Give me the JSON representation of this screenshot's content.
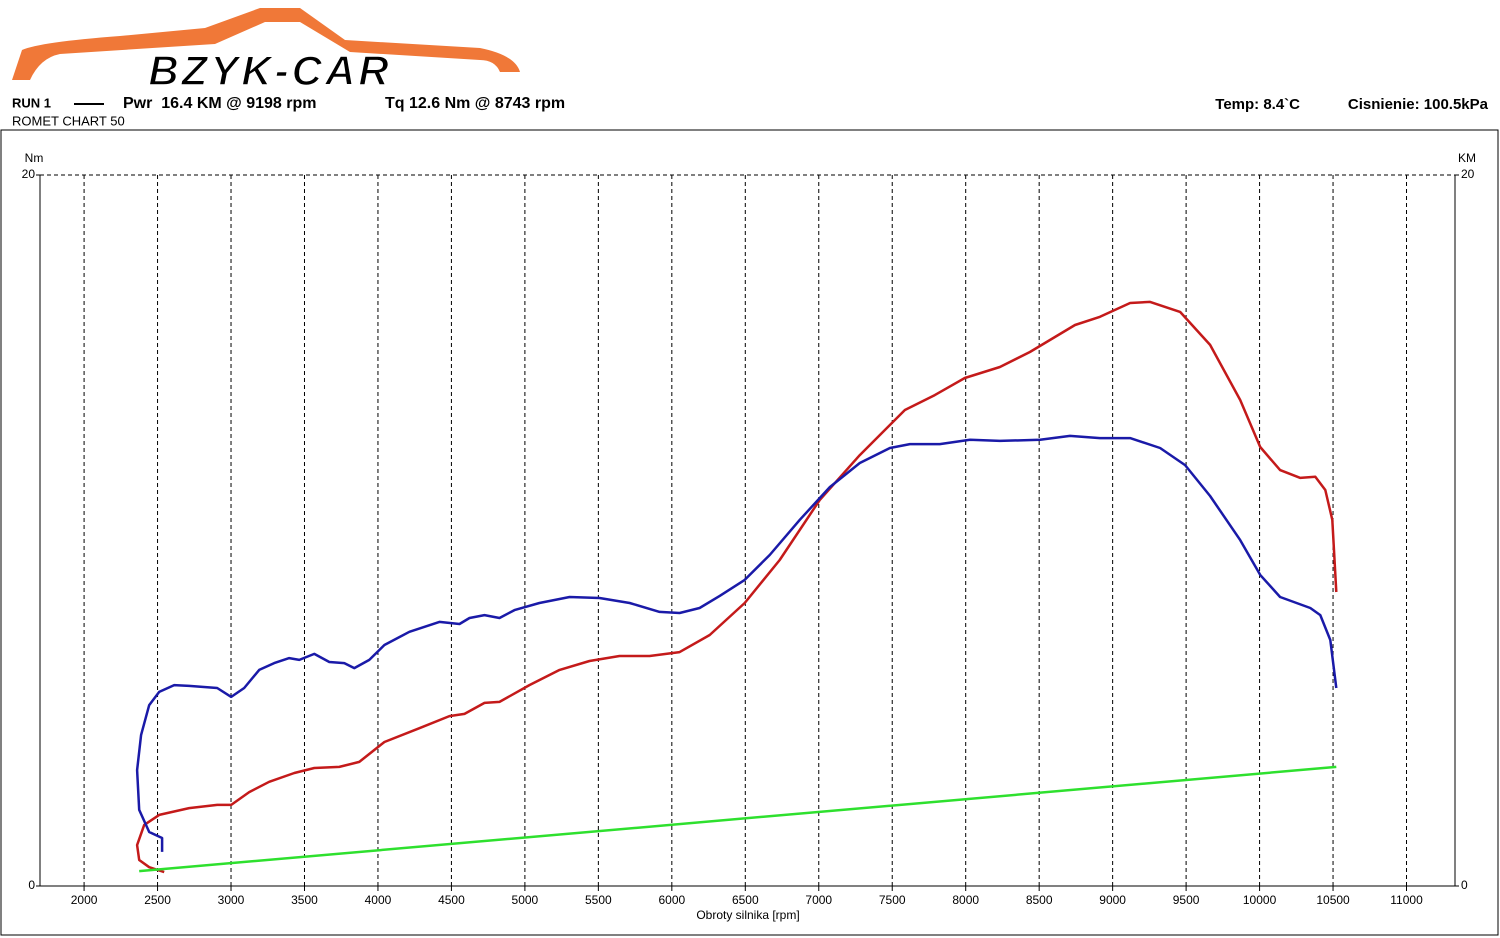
{
  "chart_data": {
    "type": "line",
    "logo": "BZYK-CAR",
    "run_label": "RUN 1",
    "subtitle": "ROMET CHART 50",
    "temperature": "Temp: 8.4`C",
    "pressure": "Cisnienie: 100.5kPa",
    "xlabel": "Obroty silnika [rpm]",
    "ylabel": "Nm",
    "y2label": "KM",
    "xlim": [
      1700,
      11330
    ],
    "xticks": [
      2000,
      2500,
      3000,
      3500,
      4000,
      4500,
      5000,
      5500,
      6000,
      6500,
      7000,
      7500,
      8000,
      8500,
      9000,
      9500,
      10000,
      10500,
      11000
    ],
    "ylim": [
      0,
      20
    ],
    "yticks": [
      0,
      20
    ],
    "y2lim": [
      0,
      20
    ],
    "y2ticks": [
      0,
      20
    ],
    "grid": true,
    "series": [
      {
        "name": "Pwr  16.4 KM @ 9198 rpm",
        "color": "#c41a1a",
        "axis": "y2",
        "x": [
          2545,
          2443,
          2375,
          2361,
          2409,
          2511,
          2715,
          2906,
          3001,
          3124,
          3260,
          3431,
          3567,
          3737,
          3873,
          4044,
          4282,
          4486,
          4589,
          4725,
          4827,
          5031,
          5236,
          5440,
          5644,
          5849,
          6053,
          6258,
          6496,
          6734,
          7007,
          7279,
          7586,
          7790,
          7994,
          8233,
          8437,
          8744,
          8914,
          9119,
          9255,
          9459,
          9663,
          9868,
          10004,
          10140,
          10277,
          10379,
          10447,
          10495,
          10522
        ],
        "values": [
          0.39,
          0.53,
          0.73,
          1.15,
          1.72,
          2.0,
          2.19,
          2.28,
          2.28,
          2.64,
          2.93,
          3.18,
          3.32,
          3.35,
          3.49,
          4.05,
          4.44,
          4.78,
          4.84,
          5.15,
          5.18,
          5.65,
          6.08,
          6.33,
          6.47,
          6.47,
          6.58,
          7.06,
          7.96,
          9.17,
          10.86,
          12.12,
          13.39,
          13.81,
          14.29,
          14.6,
          15.02,
          15.78,
          16.01,
          16.4,
          16.43,
          16.15,
          15.22,
          13.67,
          12.35,
          11.7,
          11.48,
          11.51,
          11.14,
          10.3,
          8.27
        ]
      },
      {
        "name": "Tq 12.6 Nm @ 8743 rpm",
        "color": "#1a1aa8",
        "x": [
          2531,
          2531,
          2443,
          2375,
          2361,
          2388,
          2443,
          2511,
          2613,
          2715,
          2906,
          3001,
          3090,
          3192,
          3294,
          3396,
          3465,
          3567,
          3669,
          3771,
          3839,
          3941,
          4044,
          4214,
          4418,
          4555,
          4623,
          4725,
          4827,
          4929,
          5099,
          5304,
          5508,
          5713,
          5917,
          6053,
          6189,
          6326,
          6496,
          6666,
          6871,
          7075,
          7279,
          7484,
          7620,
          7824,
          8029,
          8233,
          8506,
          8710,
          8914,
          9119,
          9323,
          9493,
          9663,
          9868,
          10004,
          10140,
          10345,
          10413,
          10481,
          10522
        ],
        "values": [
          0.96,
          1.35,
          1.52,
          2.14,
          3.26,
          4.25,
          5.09,
          5.46,
          5.65,
          5.63,
          5.57,
          5.32,
          5.57,
          6.08,
          6.27,
          6.41,
          6.36,
          6.53,
          6.3,
          6.27,
          6.13,
          6.36,
          6.78,
          7.15,
          7.43,
          7.37,
          7.54,
          7.62,
          7.54,
          7.76,
          7.96,
          8.13,
          8.1,
          7.96,
          7.71,
          7.68,
          7.82,
          8.16,
          8.61,
          9.31,
          10.3,
          11.22,
          11.9,
          12.32,
          12.43,
          12.43,
          12.55,
          12.52,
          12.55,
          12.66,
          12.6,
          12.6,
          12.32,
          11.84,
          10.97,
          9.73,
          8.75,
          8.13,
          7.82,
          7.62,
          6.92,
          5.57
        ]
      },
      {
        "color": "#2ee02e",
        "x": [
          2375,
          10522
        ],
        "values": [
          0.42,
          3.35
        ]
      }
    ]
  }
}
